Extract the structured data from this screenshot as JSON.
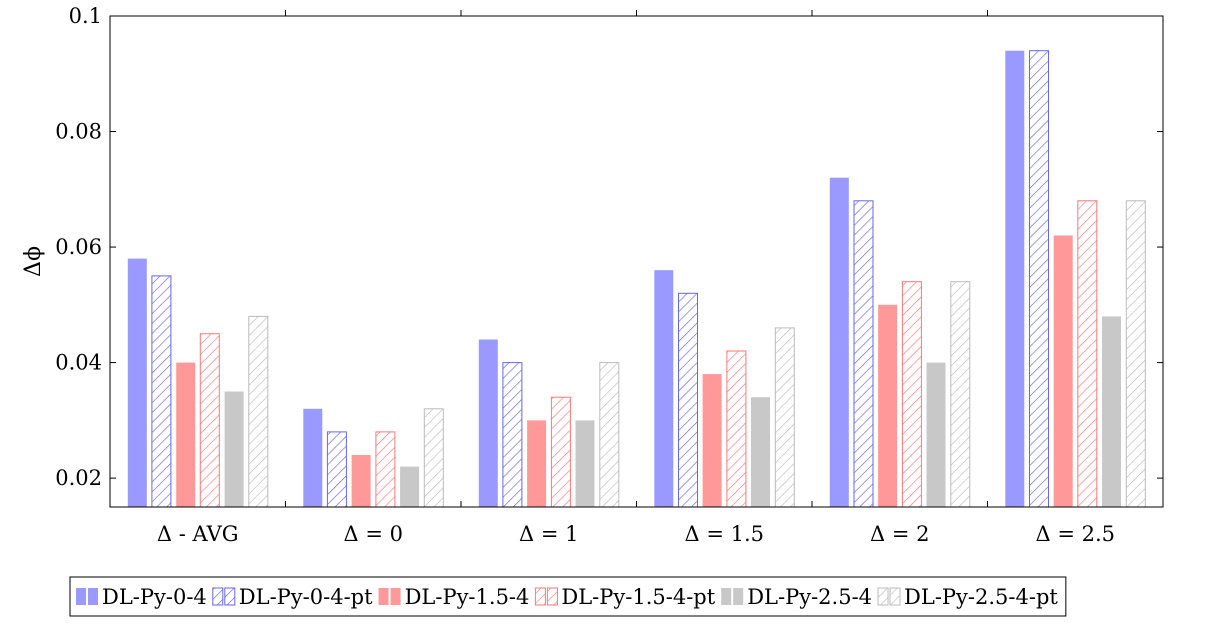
{
  "chart_data": {
    "type": "bar",
    "ylabel": "Δϕ",
    "xlabel": "",
    "ylim": [
      0.015,
      0.1
    ],
    "yticks": [
      0.02,
      0.04,
      0.06,
      0.08,
      0.1
    ],
    "ytick_labels": [
      "0.02",
      "0.04",
      "0.06",
      "0.08",
      "0.1"
    ],
    "categories": [
      "Δ - AVG",
      "Δ = 0",
      "Δ = 1",
      "Δ = 1.5",
      "Δ = 2",
      "Δ = 2.5"
    ],
    "grid": false,
    "legend_position": "bottom",
    "series": [
      {
        "name": "DL-Py-0-4",
        "color": "#9999ff",
        "hatched": false,
        "values": [
          0.058,
          0.032,
          0.044,
          0.056,
          0.072,
          0.094
        ]
      },
      {
        "name": "DL-Py-0-4-pt",
        "color": "#6666ee",
        "hatched": true,
        "values": [
          0.055,
          0.028,
          0.04,
          0.052,
          0.068,
          0.094
        ]
      },
      {
        "name": "DL-Py-1.5-4",
        "color": "#ff9999",
        "hatched": false,
        "values": [
          0.04,
          0.024,
          0.03,
          0.038,
          0.05,
          0.062
        ]
      },
      {
        "name": "DL-Py-1.5-4-pt",
        "color": "#ff7777",
        "hatched": true,
        "values": [
          0.045,
          0.028,
          0.034,
          0.042,
          0.054,
          0.068
        ]
      },
      {
        "name": "DL-Py-2.5-4",
        "color": "#c8c8c8",
        "hatched": false,
        "values": [
          0.035,
          0.022,
          0.03,
          0.034,
          0.04,
          0.048
        ]
      },
      {
        "name": "DL-Py-2.5-4-pt",
        "color": "#bbbbbb",
        "hatched": true,
        "values": [
          0.048,
          0.032,
          0.04,
          0.046,
          0.054,
          0.068
        ]
      }
    ]
  }
}
